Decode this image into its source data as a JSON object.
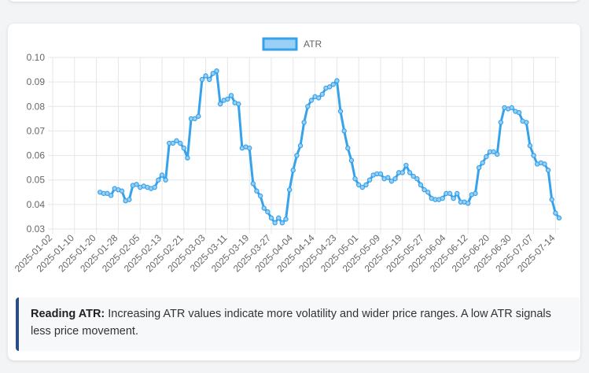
{
  "chart_data": {
    "type": "line",
    "categories": [
      "2025-01-02",
      null,
      null,
      null,
      null,
      null,
      "2025-01-10",
      null,
      null,
      null,
      null,
      null,
      "2025-01-20",
      null,
      null,
      null,
      null,
      null,
      "2025-01-28",
      null,
      null,
      null,
      null,
      null,
      "2025-02-05",
      null,
      null,
      null,
      null,
      null,
      "2025-02-13",
      null,
      null,
      null,
      null,
      null,
      "2025-02-21",
      null,
      null,
      null,
      null,
      null,
      "2025-03-03",
      null,
      null,
      null,
      null,
      null,
      "2025-03-11",
      null,
      null,
      null,
      null,
      null,
      "2025-03-19",
      null,
      null,
      null,
      null,
      null,
      "2025-03-27",
      null,
      null,
      null,
      null,
      null,
      "2025-04-04",
      null,
      null,
      null,
      null,
      null,
      "2025-04-14",
      null,
      null,
      null,
      null,
      null,
      "2025-04-23",
      null,
      null,
      null,
      null,
      null,
      "2025-05-01",
      null,
      null,
      null,
      null,
      null,
      "2025-05-09",
      null,
      null,
      null,
      null,
      null,
      "2025-05-19",
      null,
      null,
      null,
      null,
      null,
      "2025-05-27",
      null,
      null,
      null,
      null,
      null,
      "2025-06-04",
      null,
      null,
      null,
      null,
      null,
      "2025-06-12",
      null,
      null,
      null,
      null,
      null,
      "2025-06-20",
      null,
      null,
      null,
      null,
      null,
      "2025-06-30",
      null,
      null,
      null,
      null,
      null,
      "2025-07-07",
      null,
      null,
      null,
      null,
      null,
      "2025-07-14",
      null
    ],
    "series": [
      {
        "name": "ATR",
        "color": "#36a2eb",
        "fill": "#9ad0f5",
        "values": [
          null,
          null,
          null,
          null,
          null,
          null,
          null,
          null,
          null,
          null,
          null,
          null,
          null,
          0.045,
          0.0445,
          0.0445,
          0.0437,
          0.0465,
          0.046,
          0.0455,
          0.0415,
          0.042,
          0.0478,
          0.0482,
          0.047,
          0.0475,
          0.047,
          0.0465,
          0.047,
          0.05,
          0.052,
          0.05,
          0.065,
          0.065,
          0.066,
          0.065,
          0.063,
          0.059,
          0.075,
          0.075,
          0.076,
          0.091,
          0.0925,
          0.091,
          0.0935,
          0.0945,
          0.081,
          0.0825,
          0.083,
          0.0845,
          0.0815,
          0.081,
          0.063,
          0.0635,
          0.063,
          0.0485,
          0.0455,
          0.0435,
          0.0385,
          0.037,
          0.0345,
          0.0325,
          0.0345,
          0.0325,
          0.034,
          0.046,
          0.054,
          0.06,
          0.064,
          0.0735,
          0.08,
          0.0825,
          0.084,
          0.0835,
          0.085,
          0.0875,
          0.088,
          0.089,
          0.0905,
          0.078,
          0.07,
          0.063,
          0.058,
          0.0505,
          0.048,
          0.047,
          0.048,
          0.05,
          0.052,
          0.0525,
          0.0525,
          0.0505,
          0.051,
          0.0495,
          0.0505,
          0.053,
          0.053,
          0.056,
          0.053,
          0.0515,
          0.0505,
          0.048,
          0.046,
          0.045,
          0.0425,
          0.042,
          0.042,
          0.0425,
          0.0445,
          0.0445,
          0.0425,
          0.0445,
          0.041,
          0.041,
          0.0405,
          0.044,
          0.0445,
          0.055,
          0.057,
          0.0595,
          0.0615,
          0.0615,
          0.0605,
          0.0735,
          0.0795,
          0.079,
          0.0795,
          0.078,
          0.0775,
          0.074,
          0.0735,
          0.064,
          0.06,
          0.0565,
          0.057,
          0.0565,
          0.054,
          0.042,
          0.0365,
          0.0345
        ]
      }
    ],
    "ylim": [
      0.03,
      0.1
    ],
    "yticks": [
      0.03,
      0.04,
      0.05,
      0.06,
      0.07,
      0.08,
      0.09,
      {
        "value": 0.1,
        "label": "0.10"
      }
    ],
    "grid": true,
    "legend": "top"
  },
  "note": {
    "title": "Reading ATR:",
    "text": "Increasing ATR values indicate more volatility and wider price ranges. A low ATR signals less price movement."
  }
}
